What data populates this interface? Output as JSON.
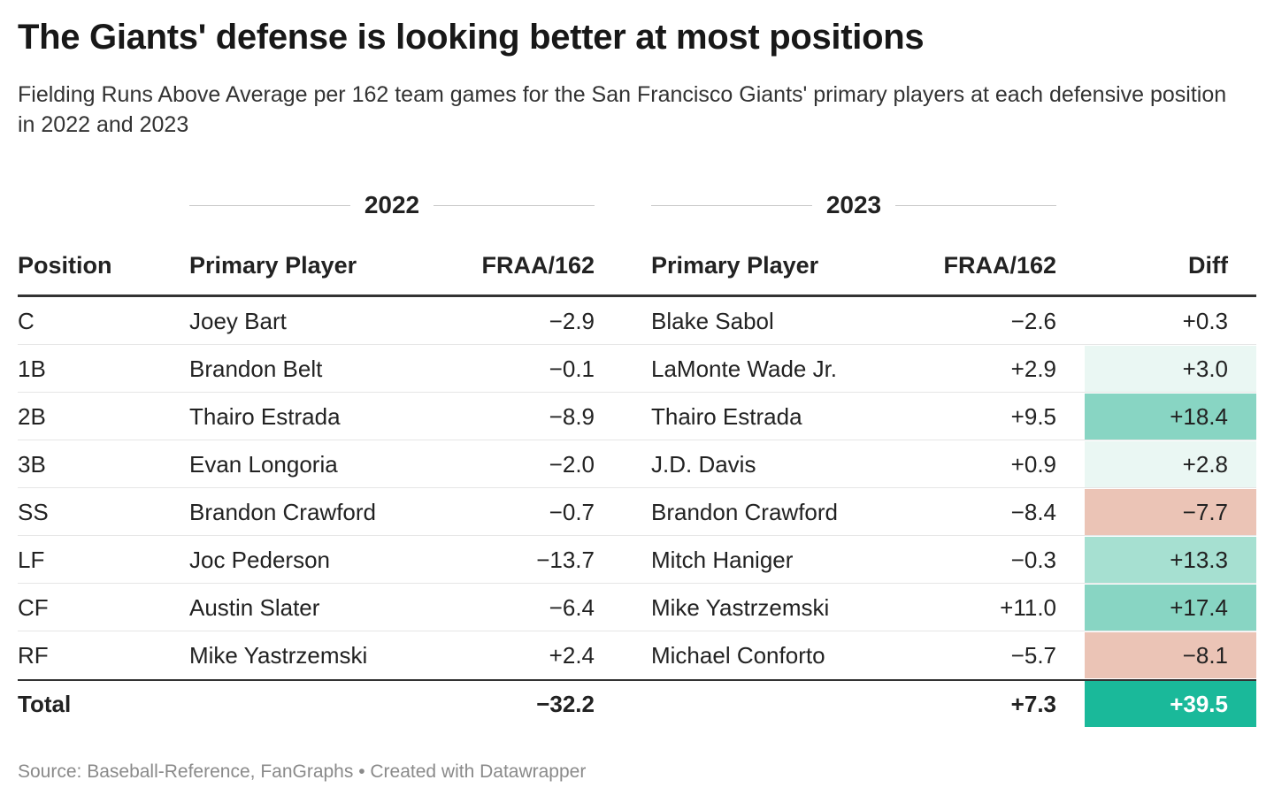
{
  "title": "The Giants' defense is looking better at most positions",
  "subtitle": "Fielding Runs Above Average per 162 team games for the San Francisco Giants' primary players at each defensive position in 2022 and 2023",
  "footer": "Source: Baseball-Reference, FanGraphs • Created with Datawrapper",
  "colors": {
    "strong_positive": "#1ab99a",
    "positive": "#88d5c3",
    "mid_positive": "#a6e0d1",
    "light_positive": "#eaf7f3",
    "negative": "#ebc4b6"
  },
  "chart_data": {
    "type": "table",
    "groups": [
      "2022",
      "2023"
    ],
    "columns": [
      "Position",
      "Primary Player",
      "FRAA/162",
      "Primary Player",
      "FRAA/162",
      "Diff"
    ],
    "rows": [
      {
        "position": "C",
        "player_2022": "Joey Bart",
        "fraa_2022": "−2.9",
        "player_2023": "Blake Sabol",
        "fraa_2023": "−2.6",
        "diff": "+0.3",
        "diff_value": 0.3,
        "diff_color": ""
      },
      {
        "position": "1B",
        "player_2022": "Brandon Belt",
        "fraa_2022": "−0.1",
        "player_2023": "LaMonte Wade Jr.",
        "fraa_2023": "+2.9",
        "diff": "+3.0",
        "diff_value": 3.0,
        "diff_color": "#eaf7f3"
      },
      {
        "position": "2B",
        "player_2022": "Thairo Estrada",
        "fraa_2022": "−8.9",
        "player_2023": "Thairo Estrada",
        "fraa_2023": "+9.5",
        "diff": "+18.4",
        "diff_value": 18.4,
        "diff_color": "#88d5c3"
      },
      {
        "position": "3B",
        "player_2022": "Evan Longoria",
        "fraa_2022": "−2.0",
        "player_2023": "J.D. Davis",
        "fraa_2023": "+0.9",
        "diff": "+2.8",
        "diff_value": 2.8,
        "diff_color": "#eaf7f3"
      },
      {
        "position": "SS",
        "player_2022": "Brandon Crawford",
        "fraa_2022": "−0.7",
        "player_2023": "Brandon Crawford",
        "fraa_2023": "−8.4",
        "diff": "−7.7",
        "diff_value": -7.7,
        "diff_color": "#ebc4b6"
      },
      {
        "position": "LF",
        "player_2022": "Joc Pederson",
        "fraa_2022": "−13.7",
        "player_2023": "Mitch Haniger",
        "fraa_2023": "−0.3",
        "diff": "+13.3",
        "diff_value": 13.3,
        "diff_color": "#a6e0d1"
      },
      {
        "position": "CF",
        "player_2022": "Austin Slater",
        "fraa_2022": "−6.4",
        "player_2023": "Mike Yastrzemski",
        "fraa_2023": "+11.0",
        "diff": "+17.4",
        "diff_value": 17.4,
        "diff_color": "#88d5c3"
      },
      {
        "position": "RF",
        "player_2022": "Mike Yastrzemski",
        "fraa_2022": "+2.4",
        "player_2023": "Michael Conforto",
        "fraa_2023": "−5.7",
        "diff": "−8.1",
        "diff_value": -8.1,
        "diff_color": "#ebc4b6"
      }
    ],
    "total": {
      "label": "Total",
      "fraa_2022": "−32.2",
      "fraa_2023": "+7.3",
      "diff": "+39.5",
      "diff_value": 39.5,
      "diff_color": "#1ab99a"
    }
  }
}
